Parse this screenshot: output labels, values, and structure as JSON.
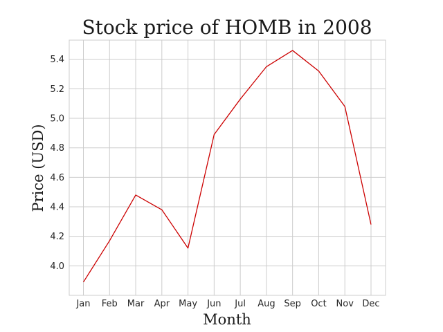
{
  "chart_data": {
    "type": "line",
    "title": "Stock price of HOMB in 2008",
    "xlabel": "Month",
    "ylabel": "Price (USD)",
    "categories": [
      "Jan",
      "Feb",
      "Mar",
      "Apr",
      "May",
      "Jun",
      "Jul",
      "Aug",
      "Sep",
      "Oct",
      "Nov",
      "Dec"
    ],
    "series": [
      {
        "values": [
          3.89,
          4.17,
          4.48,
          4.38,
          4.12,
          4.89,
          5.13,
          5.35,
          5.46,
          5.32,
          5.08,
          4.28
        ],
        "color": "#cc0000"
      }
    ],
    "ylim": [
      3.8,
      5.53
    ],
    "yticks": [
      4.0,
      4.2,
      4.4,
      4.6,
      4.8,
      5.0,
      5.2,
      5.4
    ],
    "ytick_labels": [
      "4.0",
      "4.2",
      "4.4",
      "4.6",
      "4.8",
      "5.0",
      "5.2",
      "5.4"
    ],
    "grid": true,
    "legend": false
  }
}
